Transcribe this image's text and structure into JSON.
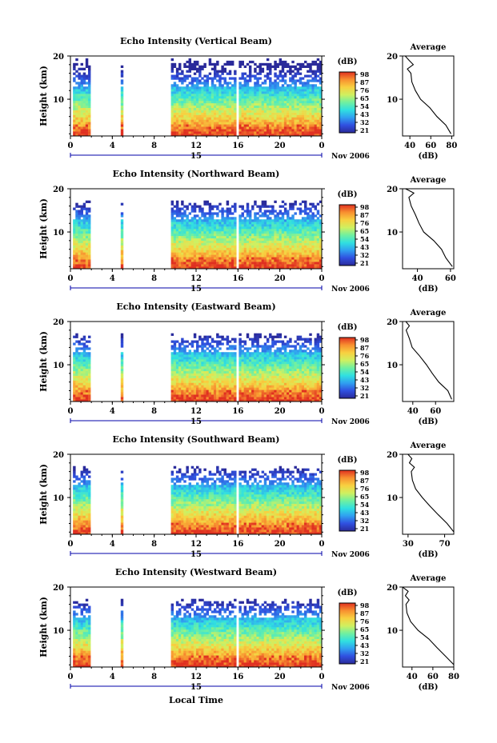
{
  "figure": {
    "xlabel": "Local Time",
    "time_ticks": [
      "0",
      "4",
      "8",
      "12",
      "16",
      "20",
      "0"
    ],
    "day_label": "15",
    "date_label": "Nov 2006",
    "height_label": "Height (km)",
    "height_ticks": [
      "20",
      "10"
    ],
    "colorbar_unit": "(dB)",
    "average_title": "Average",
    "average_xlabel": "(dB)"
  },
  "colorscale": {
    "labels": [
      "98",
      "87",
      "76",
      "65",
      "54",
      "43",
      "32",
      "21"
    ],
    "stops": [
      "#2a2a9a",
      "#3050e0",
      "#30a0f0",
      "#30e0e0",
      "#70f0a0",
      "#d0f060",
      "#f8d040",
      "#f89030",
      "#e03020"
    ]
  },
  "chart_data": [
    {
      "type": "heatmap",
      "title": "Echo Intensity (Vertical Beam)",
      "xlabel": "Local Time",
      "ylabel": "Height (km)",
      "xlim": [
        0,
        24
      ],
      "ylim": [
        1.5,
        20
      ],
      "data_gaps_hours": [
        [
          1.8,
          4.8
        ],
        [
          5.0,
          9.5
        ]
      ],
      "top_of_echo_km": 19.5,
      "average_profile": {
        "xlabel": "(dB)",
        "xticks": [
          "40",
          "60",
          "80"
        ],
        "xlim": [
          33,
          82
        ],
        "height_km": [
          2,
          4,
          6,
          8,
          10,
          12,
          14,
          16,
          17,
          18,
          19,
          20
        ],
        "db": [
          80,
          74,
          66,
          58,
          51,
          45,
          42,
          42,
          38,
          43,
          40,
          36
        ]
      }
    },
    {
      "type": "heatmap",
      "title": "Echo Intensity (Northward Beam)",
      "xlabel": "Local Time",
      "ylabel": "Height (km)",
      "xlim": [
        0,
        24
      ],
      "ylim": [
        1.5,
        20
      ],
      "data_gaps_hours": [
        [
          1.8,
          4.8
        ],
        [
          5.0,
          9.5
        ]
      ],
      "top_of_echo_km": 17.5,
      "average_profile": {
        "xlabel": "(dB)",
        "xticks": [
          "40",
          "60"
        ],
        "xlim": [
          31,
          62
        ],
        "height_km": [
          2,
          4,
          6,
          8,
          10,
          12,
          14,
          16,
          18,
          19,
          20
        ],
        "db": [
          61,
          58,
          54,
          49,
          44,
          41,
          38,
          36,
          34,
          37,
          33
        ]
      }
    },
    {
      "type": "heatmap",
      "title": "Echo Intensity (Eastward Beam)",
      "xlabel": "Local Time",
      "ylabel": "Height (km)",
      "xlim": [
        0,
        24
      ],
      "ylim": [
        1.5,
        20
      ],
      "data_gaps_hours": [
        [
          1.8,
          4.8
        ],
        [
          5.0,
          9.5
        ]
      ],
      "top_of_echo_km": 17.5,
      "average_profile": {
        "xlabel": "(dB)",
        "xticks": [
          "40",
          "60"
        ],
        "xlim": [
          31,
          76
        ],
        "height_km": [
          2,
          4,
          6,
          8,
          10,
          12,
          14,
          16,
          18,
          19,
          20
        ],
        "db": [
          75,
          70,
          64,
          58,
          52,
          45,
          40,
          36,
          35,
          38,
          33
        ]
      }
    },
    {
      "type": "heatmap",
      "title": "Echo Intensity (Southward Beam)",
      "xlabel": "Local Time",
      "ylabel": "Height (km)",
      "xlim": [
        0,
        24
      ],
      "ylim": [
        1.5,
        20
      ],
      "data_gaps_hours": [
        [
          1.8,
          4.8
        ],
        [
          5.0,
          9.5
        ]
      ],
      "top_of_echo_km": 17.5,
      "average_profile": {
        "xlabel": "(dB)",
        "xticks": [
          "30",
          "70"
        ],
        "xlim": [
          24,
          80
        ],
        "height_km": [
          2,
          4,
          6,
          8,
          10,
          12,
          14,
          16,
          17,
          18,
          19,
          20
        ],
        "db": [
          79,
          72,
          62,
          53,
          45,
          38,
          34,
          33,
          37,
          31,
          35,
          30
        ]
      }
    },
    {
      "type": "heatmap",
      "title": "Echo Intensity (Westward Beam)",
      "xlabel": "Local Time",
      "ylabel": "Height (km)",
      "xlim": [
        0,
        24
      ],
      "ylim": [
        1.5,
        20
      ],
      "data_gaps_hours": [
        [
          1.8,
          4.8
        ],
        [
          5.0,
          9.5
        ]
      ],
      "top_of_echo_km": 17.5,
      "average_profile": {
        "xlabel": "(dB)",
        "xticks": [
          "40",
          "60",
          "80"
        ],
        "xlim": [
          31,
          80
        ],
        "height_km": [
          2,
          4,
          6,
          8,
          10,
          12,
          14,
          16,
          17,
          18,
          19,
          20
        ],
        "db": [
          79,
          73,
          64,
          55,
          47,
          40,
          36,
          34,
          37,
          33,
          36,
          32
        ]
      }
    }
  ]
}
